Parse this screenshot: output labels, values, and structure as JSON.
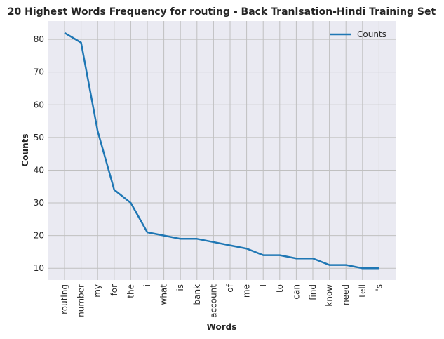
{
  "chart_data": {
    "type": "line",
    "title": "20 Highest Words Frequency for routing - Back Tranlsation-Hindi Training Set",
    "xlabel": "Words",
    "ylabel": "Counts",
    "categories": [
      "routing",
      "number",
      "my",
      "for",
      "the",
      "i",
      "what",
      "is",
      "bank",
      "account",
      "of",
      "me",
      "I",
      "to",
      "can",
      "find",
      "know",
      "need",
      "tell",
      "'s"
    ],
    "series": [
      {
        "name": "Counts",
        "values": [
          82,
          79,
          52,
          34,
          30,
          21,
          20,
          19,
          19,
          18,
          17,
          16,
          14,
          14,
          13,
          13,
          11,
          11,
          10,
          10
        ],
        "color": "#1f77b4"
      }
    ],
    "yticks": [
      10,
      20,
      30,
      40,
      50,
      60,
      70,
      80
    ],
    "ylim": [
      6.4,
      85.6
    ],
    "grid": true,
    "legend": "top-right",
    "background": "#eaeaf2",
    "grid_color": "#c0c0c0"
  }
}
